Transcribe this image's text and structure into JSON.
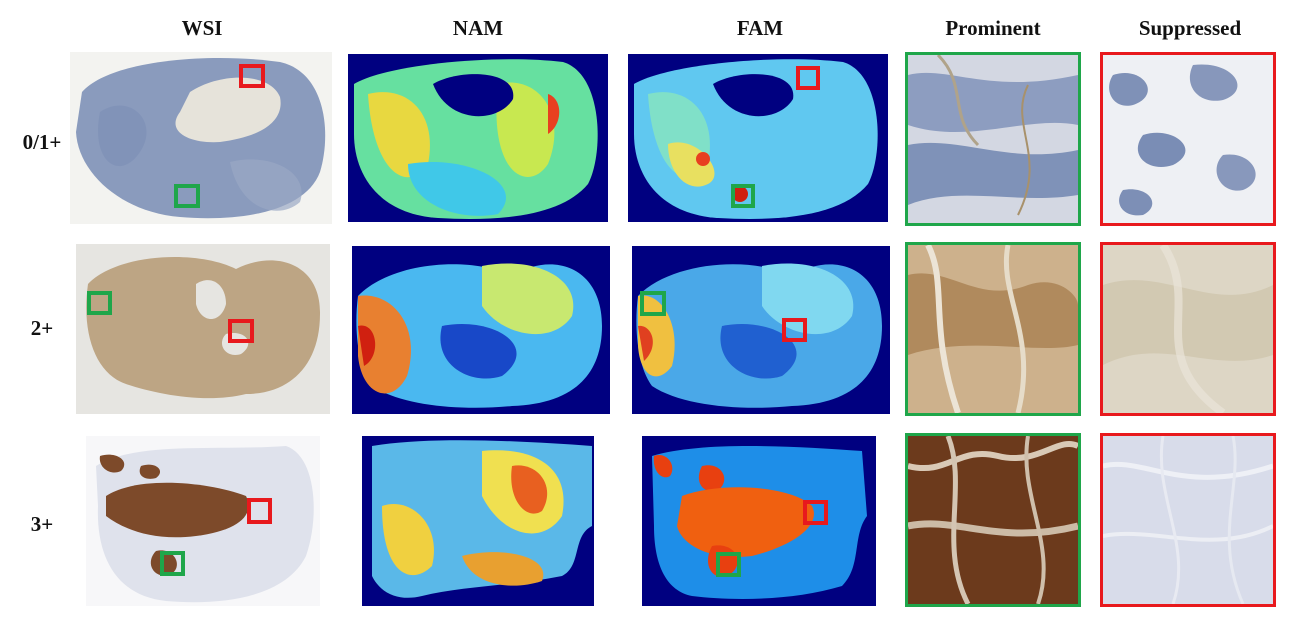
{
  "columns": {
    "wsi": "WSI",
    "nam": "NAM",
    "fam": "FAM",
    "prominent": "Prominent",
    "suppressed": "Suppressed"
  },
  "rows": [
    {
      "label": "0/1+",
      "stain": "blue-gray"
    },
    {
      "label": "2+",
      "stain": "light-brown"
    },
    {
      "label": "3+",
      "stain": "dark-brown"
    }
  ],
  "colors": {
    "prominent_box": "#1fa64a",
    "suppressed_box": "#e8191d",
    "heatmap_background": "#000080"
  },
  "legend_meaning": {
    "prominent": "green",
    "suppressed": "red"
  }
}
